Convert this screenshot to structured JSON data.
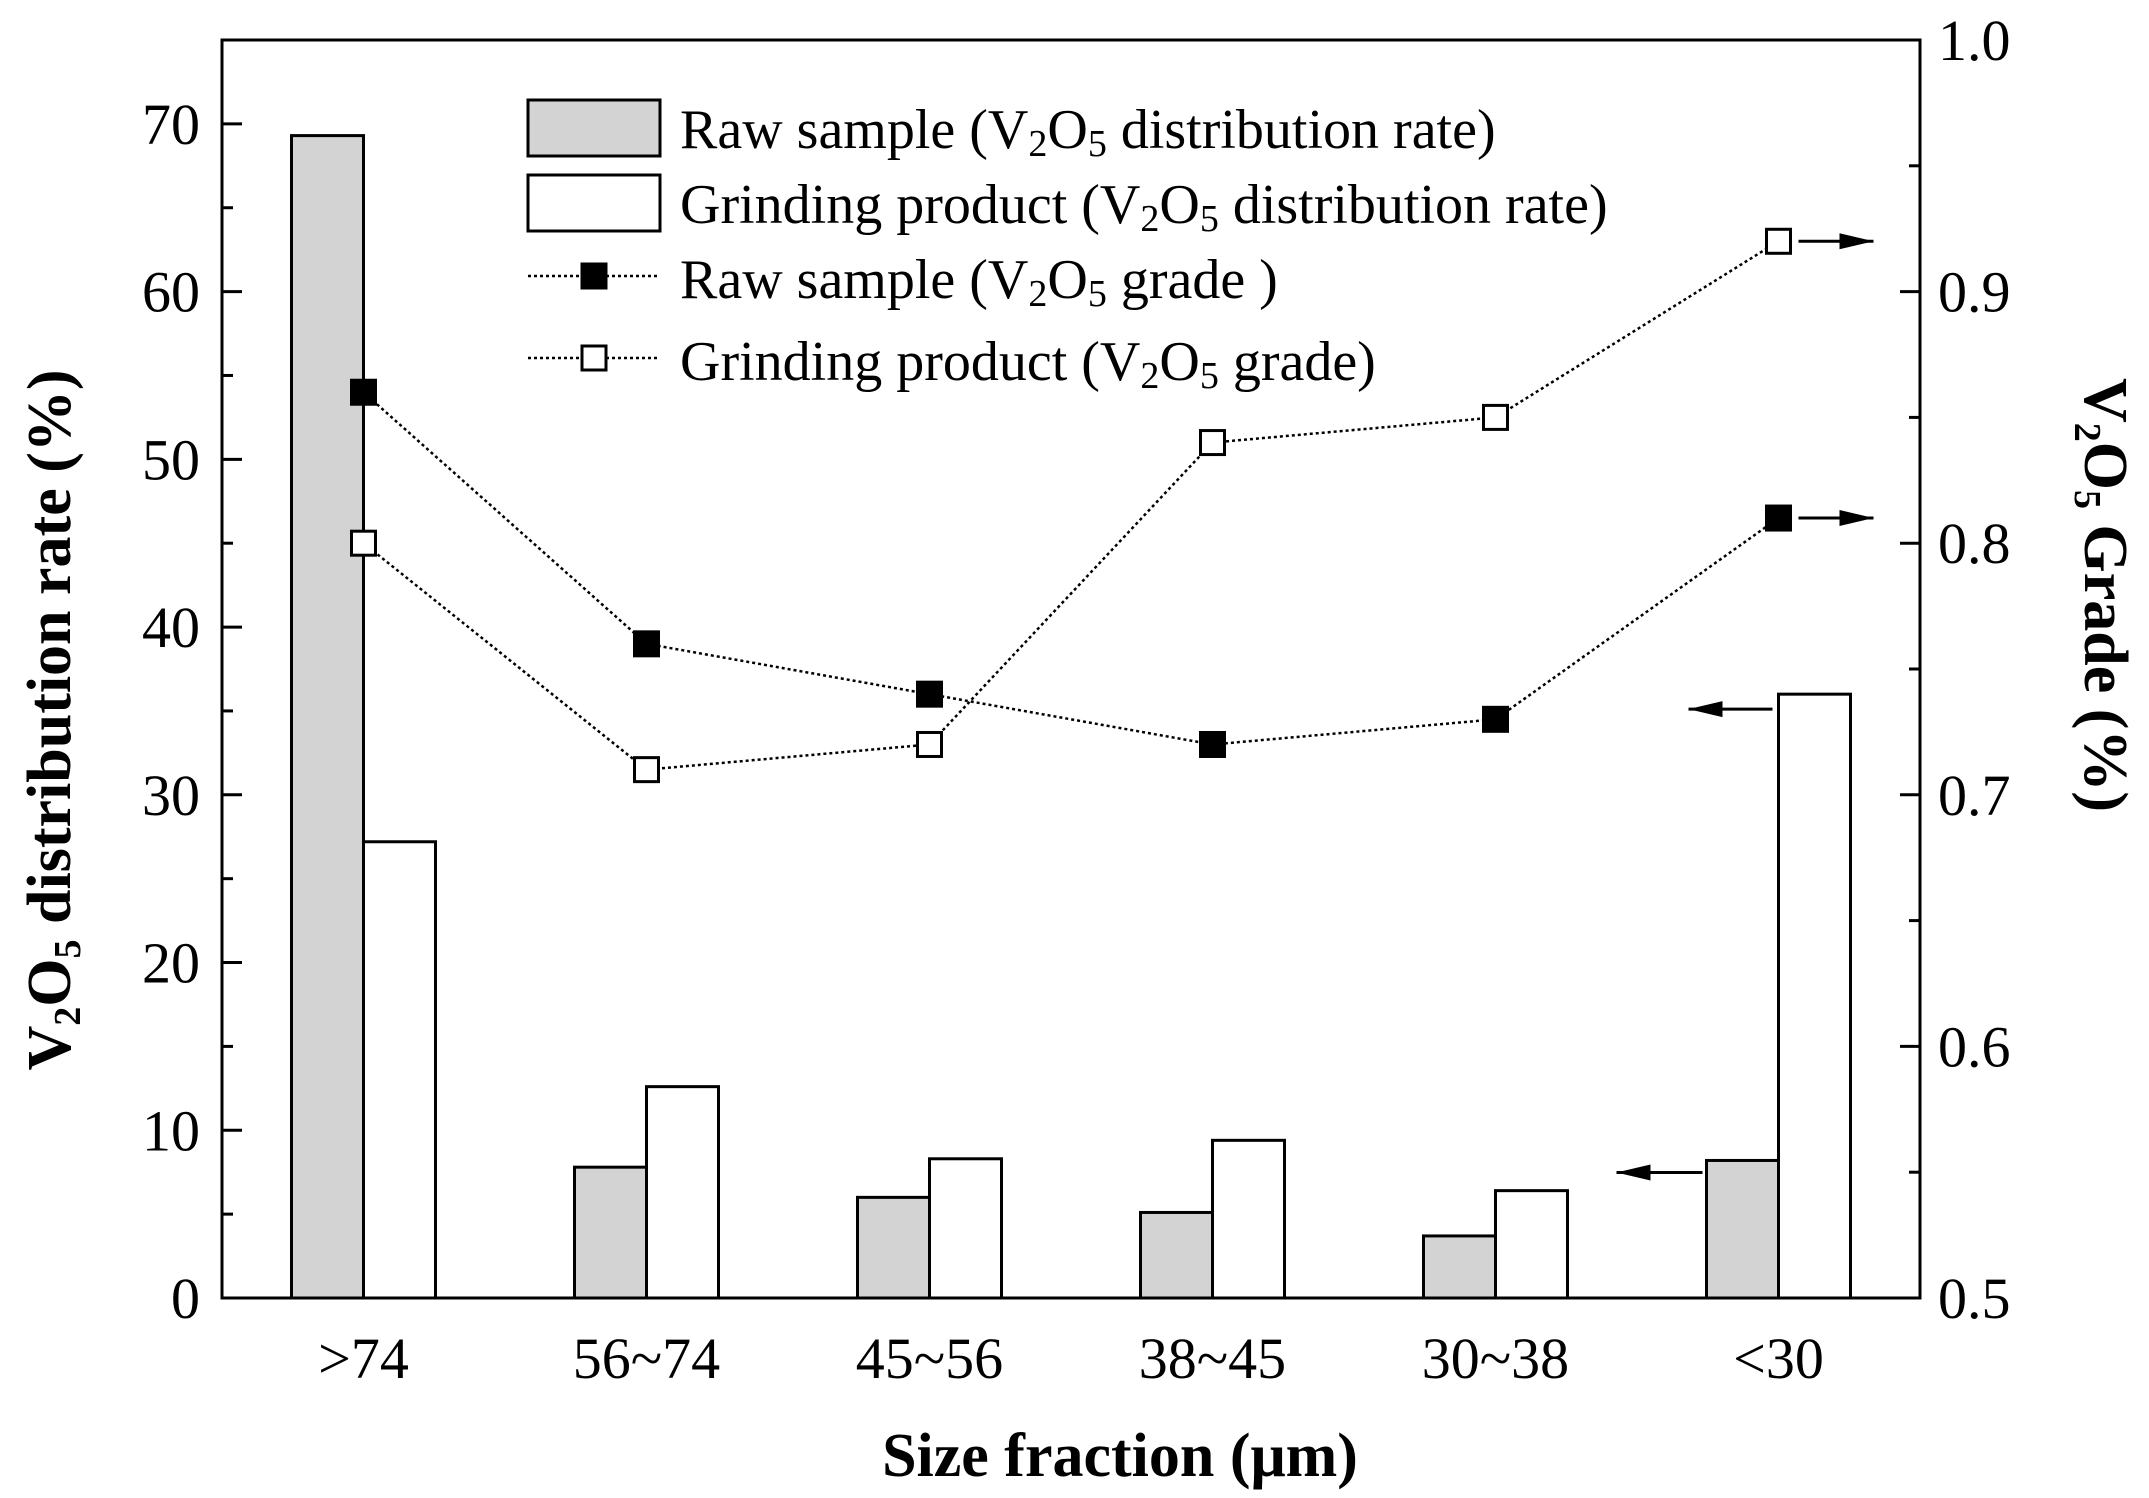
{
  "chart_data": {
    "type": "bar",
    "title": "",
    "categories": [
      ">74",
      "56~74",
      "45~56",
      "38~45",
      "30~38",
      "<30"
    ],
    "xlabel": "Size fraction (μm)",
    "ylabel": {
      "pre": "V",
      "sub1": "2",
      "mid": "O",
      "sub2": "5",
      "post": " distribution rate (%)"
    },
    "ylabel_right": {
      "pre": "V",
      "sub1": "2",
      "mid": "O",
      "sub2": "5",
      "post": " Grade (%)"
    },
    "ylim": [
      0,
      75
    ],
    "ylim_right": [
      0.5,
      1.0
    ],
    "yticks": [
      "0",
      "10",
      "20",
      "30",
      "40",
      "50",
      "60",
      "70"
    ],
    "yticks_right": [
      "0.5",
      "0.6",
      "0.7",
      "0.8",
      "0.9",
      "1.0"
    ],
    "series": [
      {
        "name": "Raw sample (V2O5 distribution rate)",
        "kind": "bar",
        "axis": "left",
        "color": "#d3d3d3",
        "values": [
          69.3,
          7.8,
          6.0,
          5.1,
          3.7,
          8.2
        ]
      },
      {
        "name": "Grinding product (V2O5 distribution rate)",
        "kind": "bar",
        "axis": "left",
        "color": "#ffffff",
        "values": [
          27.2,
          12.6,
          8.3,
          9.4,
          6.4,
          36.0
        ]
      },
      {
        "name": "Raw sample (V2O5 grade )",
        "kind": "line",
        "axis": "right",
        "marker": "filled-square",
        "values": [
          0.86,
          0.76,
          0.74,
          0.72,
          0.73,
          0.81
        ]
      },
      {
        "name": "Grinding product (V2O5 grade)",
        "kind": "line",
        "axis": "right",
        "marker": "open-square",
        "values": [
          0.8,
          0.71,
          0.72,
          0.84,
          0.85,
          0.92
        ]
      }
    ],
    "legend": {
      "placement": "top-center",
      "items": [
        {
          "pre": "Raw sample (V",
          "sub1": "2",
          "mid": "O",
          "sub2": "5",
          "post": " distribution rate)"
        },
        {
          "pre": "Grinding product (V",
          "sub1": "2",
          "mid": "O",
          "sub2": "5",
          "post": " distribution rate)"
        },
        {
          "pre": "Raw sample (V",
          "sub1": "2",
          "mid": "O",
          "sub2": "5",
          "post": " grade )"
        },
        {
          "pre": "Grinding product (V",
          "sub1": "2",
          "mid": "O",
          "sub2": "5",
          "post": " grade)"
        }
      ]
    },
    "annotations": [
      "arrows on <30 group: bars point to left axis, line markers point to right axis"
    ],
    "grid": false
  }
}
